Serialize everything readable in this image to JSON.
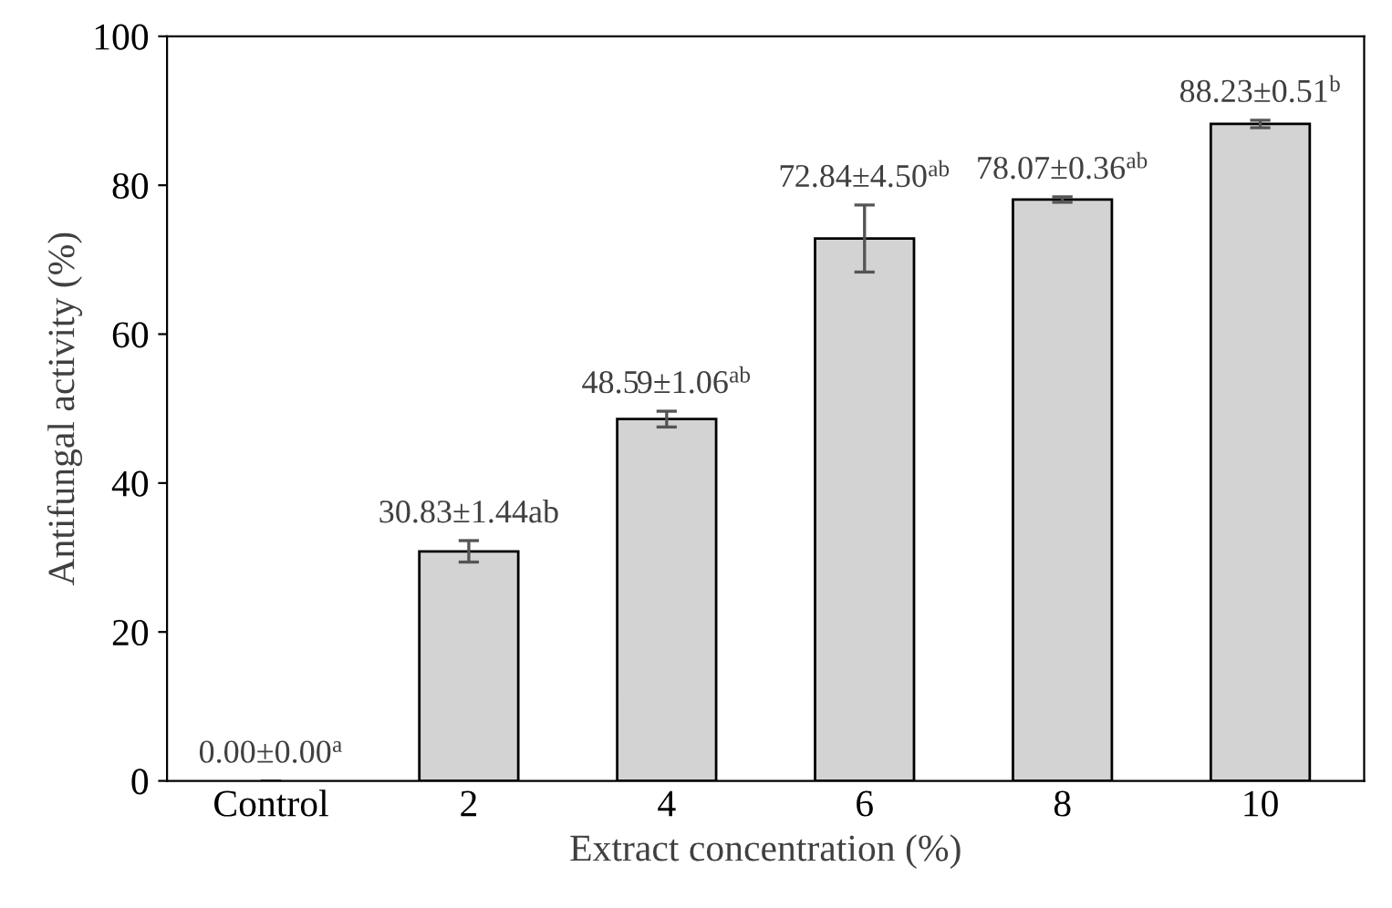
{
  "chart_data": {
    "type": "bar",
    "xlabel": "Extract concentration (%)",
    "ylabel": "Antifungal activity (%)",
    "categories": [
      "Control",
      "2",
      "4",
      "6",
      "8",
      "10"
    ],
    "values": [
      0.0,
      30.83,
      48.59,
      72.84,
      78.07,
      88.23
    ],
    "errors": [
      0.0,
      1.44,
      1.06,
      4.5,
      0.36,
      0.51
    ],
    "value_labels": [
      "0.00±0.00$^{a}$",
      "30.83±1.44ab",
      "48.59±1.06$^{ab}$",
      "72.84±4.50$^{ab}$",
      "78.07±0.36$^{ab}$",
      "88.23±0.51$^{b}$"
    ],
    "color": "#d3d3d3",
    "ylim": [
      0,
      100
    ],
    "yticks": [
      0,
      20,
      40,
      60,
      80,
      100
    ],
    "grid": false,
    "legend": false
  }
}
